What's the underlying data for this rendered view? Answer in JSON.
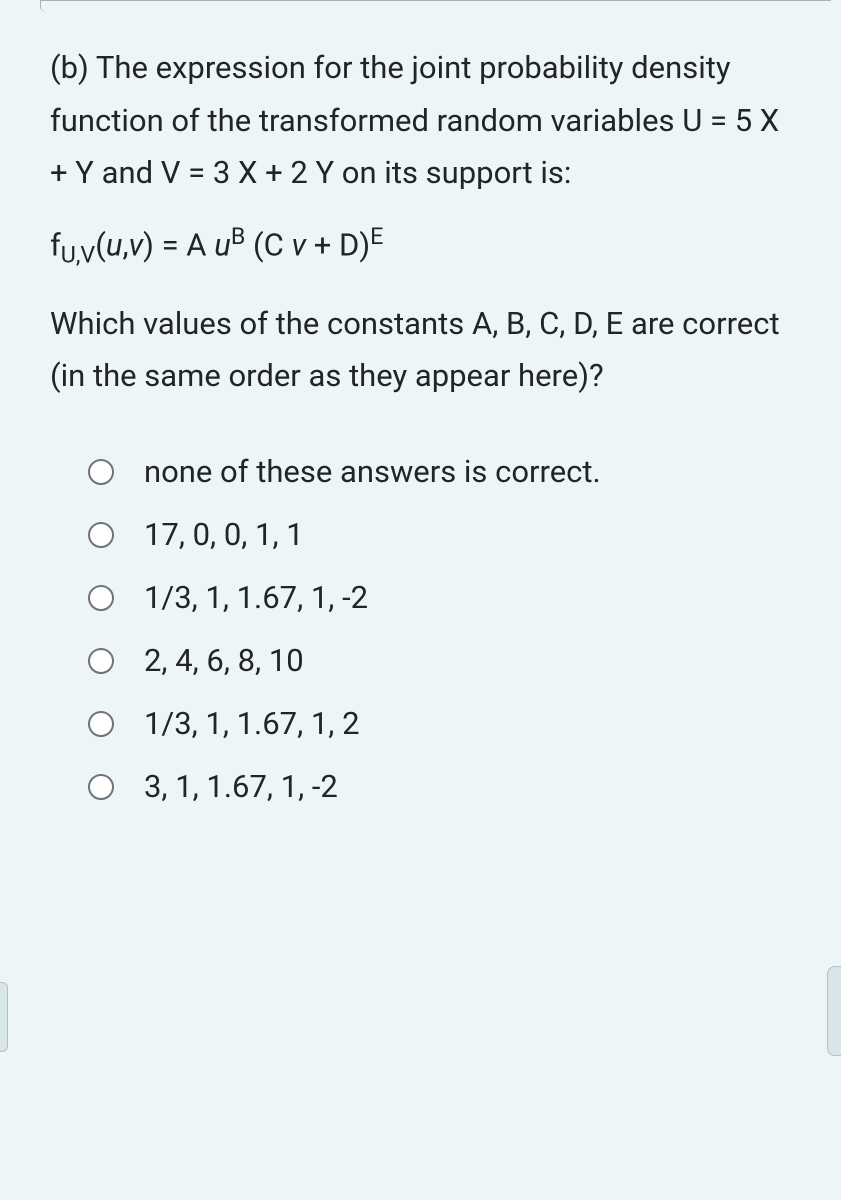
{
  "question": {
    "stem_line1": "(b) The expression for the joint probability density function of the transformed random variables U = 5 X + Y and V = 3 X + 2 Y on its support is:",
    "formula_prefix": "f",
    "formula_sub": "U,V",
    "formula_args": "(",
    "formula_u": "u",
    "formula_comma": ",",
    "formula_v": "v",
    "formula_close": ") = A ",
    "formula_u2": "u",
    "formula_supB": "B",
    "formula_mid": " (C ",
    "formula_v2": "v",
    "formula_plus": " + D)",
    "formula_supE": "E",
    "stem_line2": "Which values of the constants A, B, C, D, E are correct (in the same order as they appear here)?"
  },
  "options": [
    "none of these answers is correct.",
    "17, 0, 0, 1, 1",
    "1/3, 1, 1.67, 1, -2",
    "2, 4, 6, 8, 10",
    "1/3, 1, 1.67, 1, 2",
    "3, 1, 1.67, 1, -2"
  ],
  "colors": {
    "background": "#eef5f7",
    "text": "#212529",
    "radio_border": "#6c757d"
  },
  "typography": {
    "font_size_body": 31,
    "line_height": 1.7
  }
}
